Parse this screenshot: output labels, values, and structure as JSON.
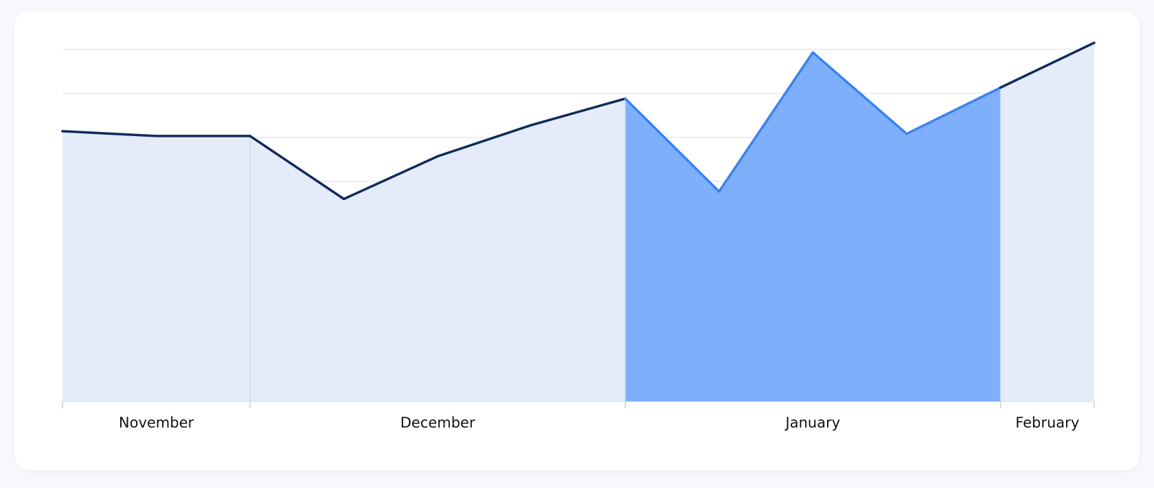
{
  "chart_data": {
    "type": "area",
    "x": [
      0,
      1,
      2,
      3,
      4,
      5,
      6,
      7,
      8,
      9,
      10,
      11
    ],
    "values": [
      6.14,
      6.03,
      6.03,
      4.6,
      5.57,
      6.28,
      6.88,
      4.77,
      7.93,
      6.08,
      7.13,
      8.15
    ],
    "xlim": [
      0,
      11
    ],
    "ylim": [
      0,
      8.2
    ],
    "yticks": [
      0,
      1,
      2,
      3,
      4,
      5,
      6,
      7,
      8
    ],
    "grid": true,
    "color": "#0f2a5c",
    "fill_color": "#e4ecf9",
    "highlight_color": "#3b82f0",
    "highlight_fill_color": "#7eaffb",
    "periods": [
      {
        "label": "November",
        "start": 0,
        "end": 2,
        "highlighted": false
      },
      {
        "label": "December",
        "start": 2,
        "end": 6,
        "highlighted": false
      },
      {
        "label": "January",
        "start": 6,
        "end": 10,
        "highlighted": true
      },
      {
        "label": "February",
        "start": 10,
        "end": 11,
        "highlighted": false
      }
    ]
  }
}
